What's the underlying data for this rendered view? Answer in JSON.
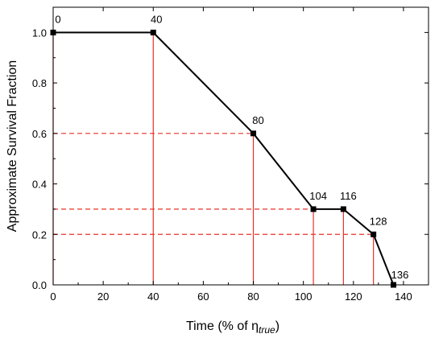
{
  "chart_data": {
    "type": "line",
    "xlabel": "Time (% of η",
    "xlabel_subscript": "true",
    "xlabel_suffix": ")",
    "ylabel": "Approximate Survival Fraction",
    "xlim": [
      0,
      150
    ],
    "ylim": [
      0,
      1.1
    ],
    "xticks": [
      0,
      20,
      40,
      60,
      80,
      100,
      120,
      140
    ],
    "xtick_labels": [
      "0",
      "20",
      "40",
      "60",
      "80",
      "100",
      "120",
      "140"
    ],
    "yticks": [
      0.0,
      0.2,
      0.4,
      0.6,
      0.8,
      1.0
    ],
    "ytick_labels": [
      "0.0",
      "0.2",
      "0.4",
      "0.6",
      "0.8",
      "1.0"
    ],
    "grid": false,
    "series": [
      {
        "x": [
          0,
          40,
          80,
          104,
          116,
          128,
          136
        ],
        "y": [
          1.0,
          1.0,
          0.6,
          0.3,
          0.3,
          0.2,
          0.0
        ],
        "point_labels": [
          "0",
          "40",
          "80",
          "104",
          "116",
          "128",
          "136"
        ],
        "color": "#000000",
        "marker": "square"
      }
    ],
    "reference_lines": {
      "color": "#e8312a",
      "vertical_solid_at_x": [
        0,
        40,
        80,
        104,
        116,
        128
      ],
      "horizontal_dashed": [
        {
          "y": 1.0,
          "x_to": 40
        },
        {
          "y": 0.6,
          "x_to": 80
        },
        {
          "y": 0.3,
          "x_to": 104
        },
        {
          "y": 0.2,
          "x_to": 128
        }
      ]
    }
  }
}
